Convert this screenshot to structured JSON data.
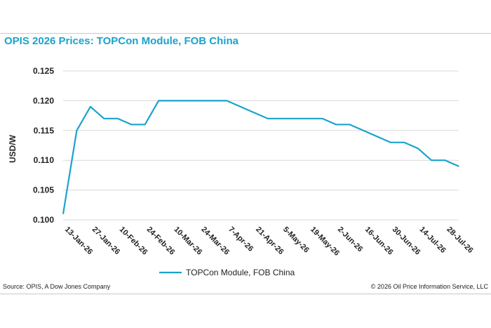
{
  "chart_data": {
    "type": "line",
    "title": "OPIS 2026 Prices: TOPCon Module, FOB China",
    "ylabel": "USD/W",
    "xlabel": "",
    "ylim": [
      0.1,
      0.125
    ],
    "yticks": [
      "0.100",
      "0.105",
      "0.110",
      "0.115",
      "0.120",
      "0.125"
    ],
    "ytick_values": [
      0.1,
      0.105,
      0.11,
      0.115,
      0.12,
      0.125
    ],
    "xticks": [
      "13-Jan-26",
      "27-Jan-26",
      "10-Feb-26",
      "24-Feb-26",
      "10-Mar-26",
      "24-Mar-26",
      "7-Apr-26",
      "21-Apr-26",
      "5-May-26",
      "19-May-26",
      "2-Jun-26",
      "16-Jun-26",
      "30-Jun-26",
      "14-Jul-26",
      "28-Jul-26"
    ],
    "grid": "horizontal",
    "legend": "bottom",
    "series": [
      {
        "name": "TOPCon Module, FOB China",
        "color": "#1aa3cc",
        "values": [
          0.101,
          0.115,
          0.119,
          0.117,
          0.117,
          0.116,
          0.116,
          0.12,
          0.12,
          0.12,
          0.12,
          0.12,
          0.12,
          0.119,
          0.118,
          0.117,
          0.117,
          0.117,
          0.117,
          0.117,
          0.116,
          0.116,
          0.115,
          0.114,
          0.113,
          0.113,
          0.112,
          0.11,
          0.11,
          0.109
        ]
      }
    ]
  },
  "footer": {
    "source": "Source: OPIS, A Dow Jones Company",
    "copyright": "© 2026 Oil Price Information Service, LLC"
  }
}
